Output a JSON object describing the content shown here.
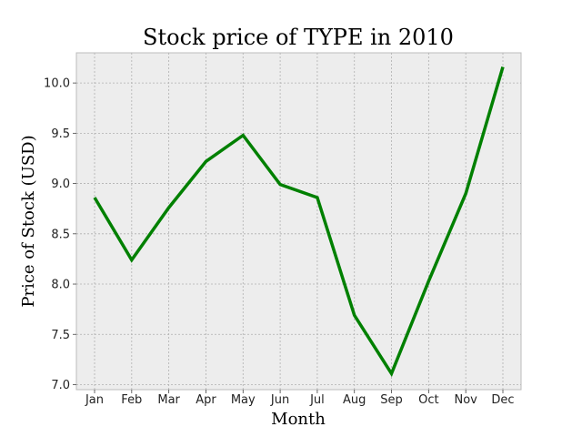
{
  "chart_data": {
    "type": "line",
    "title": "Stock price of TYPE in 2010",
    "xlabel": "Month",
    "ylabel": "Price of Stock (USD)",
    "categories": [
      "Jan",
      "Feb",
      "Mar",
      "Apr",
      "May",
      "Jun",
      "Jul",
      "Aug",
      "Sep",
      "Oct",
      "Nov",
      "Dec"
    ],
    "series": [
      {
        "values": [
          8.86,
          8.24,
          8.76,
          9.22,
          9.48,
          8.99,
          8.86,
          7.69,
          7.11,
          8.03,
          8.9,
          10.16
        ],
        "color": "#008000"
      }
    ],
    "yticks": [
      "7.0",
      "7.5",
      "8.0",
      "8.5",
      "9.0",
      "9.5",
      "10.0"
    ],
    "ylim": [
      6.95,
      10.3
    ],
    "grid": true,
    "colors": {
      "background": "#ededed",
      "grid": "#b0b0b0",
      "frame": "#bcbcbc",
      "line": "#008000"
    }
  }
}
